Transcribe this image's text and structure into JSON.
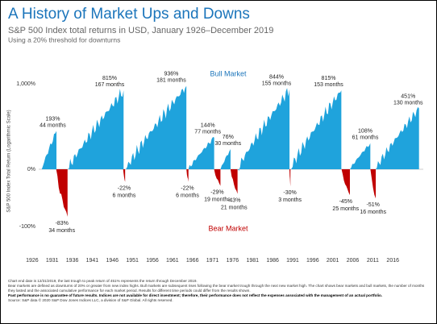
{
  "chart_data": {
    "type": "market-cycles",
    "title": "A History of Market Ups and Downs",
    "subtitle": "S&P 500 Index total returns in USD, January 1926–December 2019",
    "note": "Using a 20% threshold for downturns",
    "y_axis_label": "S&P 500 Index Total Return (Logarithmic Scale)",
    "y_scale": "log",
    "xlim": [
      1921.6,
      2023.6
    ],
    "xticks": [
      1926,
      1931,
      1936,
      1941,
      1946,
      1951,
      1956,
      1961,
      1966,
      1971,
      1976,
      1981,
      1986,
      1991,
      1996,
      2001,
      2006,
      2011,
      2016
    ],
    "ylim": [
      -100,
      1000
    ],
    "yticks": [
      {
        "value": 1000,
        "label": "1,000%"
      },
      {
        "value": 0,
        "label": "0%"
      },
      {
        "value": -100,
        "label": "-100%"
      }
    ],
    "series": [
      {
        "name": "Bull Market",
        "color": "#1fa3dc",
        "x": [
          1928.4,
          1934.9,
          1949.4,
          1965.0,
          1973.0,
          1977.3,
          1990.4,
          2005.3,
          2011.7
        ],
        "values": [
          193,
          815,
          936,
          144,
          76,
          844,
          815,
          108,
          451
        ],
        "value_labels": [
          "193%",
          "815%",
          "936%",
          "144%",
          "76%",
          "844%",
          "815%",
          "108%",
          "451%"
        ],
        "months": [
          44,
          167,
          181,
          77,
          30,
          155,
          153,
          61,
          130
        ],
        "months_labels": [
          "44 months",
          "167 months",
          "181 months",
          "77 months",
          "30 months",
          "155 months",
          "153 months",
          "61 months",
          "130 months"
        ]
      },
      {
        "name": "Bear Market",
        "color": "#c00000",
        "x": [
          1932.0,
          1948.7,
          1964.5,
          1971.4,
          1975.5,
          1990.2,
          2003.2,
          2010.4
        ],
        "values": [
          -83,
          -22,
          -22,
          -29,
          -43,
          -30,
          -45,
          -51
        ],
        "value_labels": [
          "-83%",
          "-22%",
          "-22%",
          "-29%",
          "-43%",
          "-30%",
          "-45%",
          "-51%"
        ],
        "months": [
          34,
          6,
          6,
          19,
          21,
          3,
          25,
          16
        ],
        "months_labels": [
          "34 months",
          "6 months",
          "6 months",
          "19 months",
          "21 months",
          "3 months",
          "25 months",
          "16 months"
        ]
      }
    ],
    "footnotes": [
      "Chart end date is 12/31/2019, the last trough to peak return of 451% represents the return through December 2019.",
      "Bear markets are defined as downturns of 20% or greater from new index highs. Bull markets are subsequent rises following the bear market trough through the next new market high. The chart shows bear markets and bull markets, the number of months they lasted and the associated cumulative performance for each market period. Results for different time periods could differ from the results shown.",
      "Past performance is no guarantee of future results. Indices are not available for direct investment; therefore, their performance does not reflect the expenses associated with the management of an actual portfolio.",
      "Source: S&P data © 2020 S&P Dow Jones Indices LLC, a division of S&P Global. All rights reserved."
    ]
  }
}
